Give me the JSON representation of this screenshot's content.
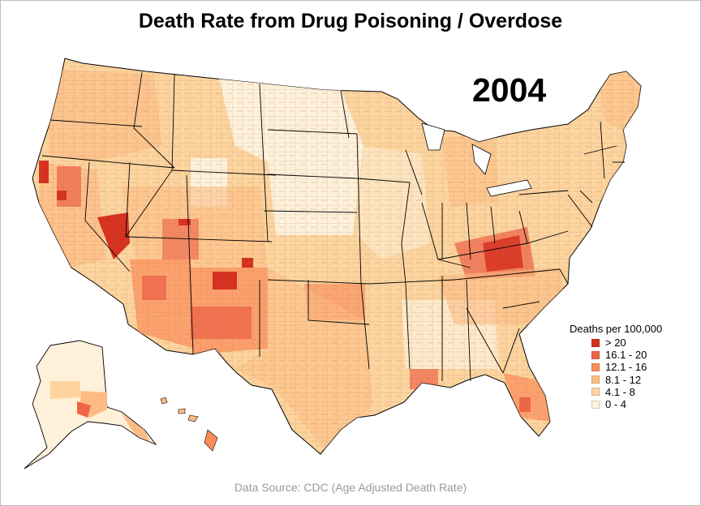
{
  "title": "Death Rate from Drug Poisoning / Overdose",
  "year": "2004",
  "legend": {
    "title": "Deaths per 100,000",
    "items": [
      {
        "label": "> 20",
        "color": "#d7301f"
      },
      {
        "label": "16.1 - 20",
        "color": "#ef6548"
      },
      {
        "label": "12.1 - 16",
        "color": "#fc8d59"
      },
      {
        "label": "8.1 - 12",
        "color": "#fdbb84"
      },
      {
        "label": "4.1 - 8",
        "color": "#fdd49e"
      },
      {
        "label": "0 - 4",
        "color": "#fef0d9"
      }
    ]
  },
  "source": "Data Source: CDC (Age Adjusted Death Rate)"
}
